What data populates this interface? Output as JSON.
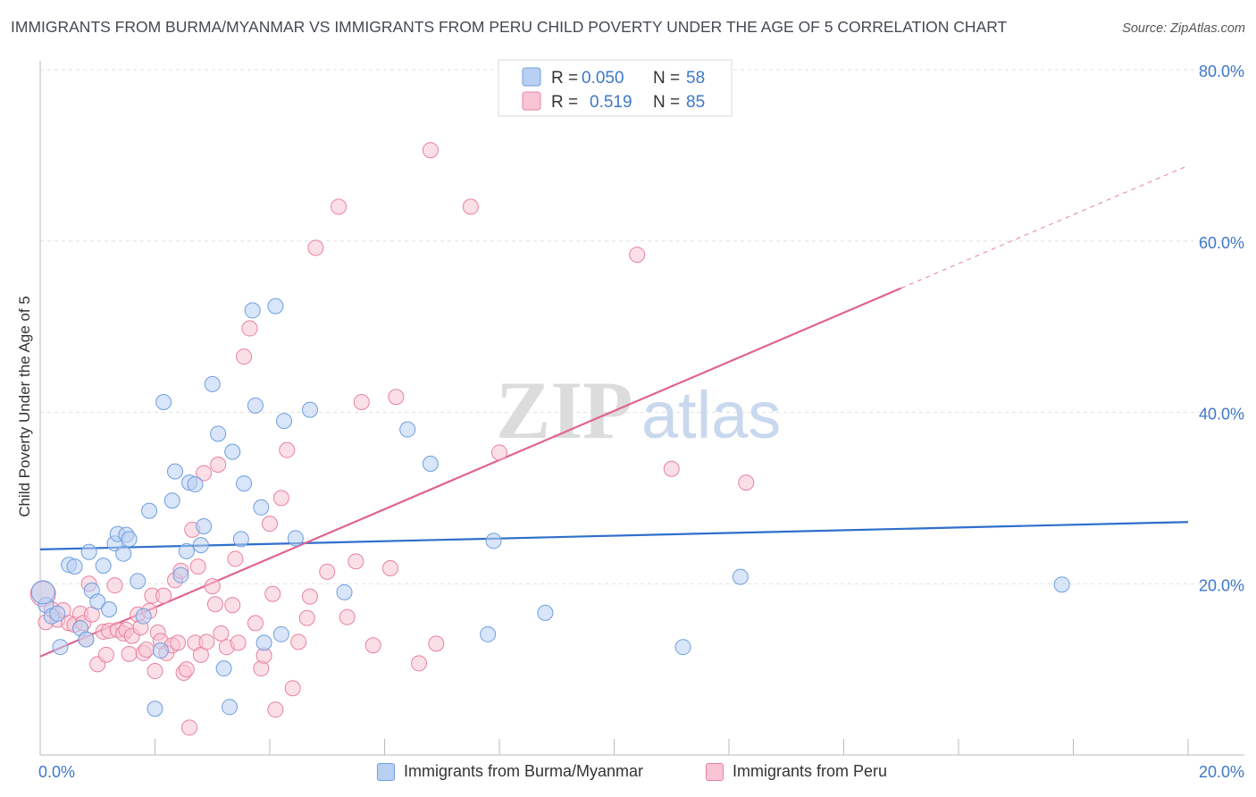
{
  "title": "IMMIGRANTS FROM BURMA/MYANMAR VS IMMIGRANTS FROM PERU CHILD POVERTY UNDER THE AGE OF 5 CORRELATION CHART",
  "source": "Source: ZipAtlas.com",
  "watermark": {
    "zip": "ZIP",
    "atlas": "atlas"
  },
  "colors": {
    "blue_fill": "#b9d0f2",
    "blue_stroke": "#6d9fe0",
    "blue_line": "#2f6fcb",
    "pink_fill": "#f8c5d4",
    "pink_stroke": "#e8819f",
    "pink_line": "#e0648f",
    "tick_text": "#3d78c9",
    "grid": "#e2e2e2"
  },
  "legend_top": [
    {
      "r_label": "R =",
      "r_value": "0.050",
      "n_label": "N =",
      "n_value": "58"
    },
    {
      "r_label": "R =",
      "r_value": "0.519",
      "n_label": "N =",
      "n_value": "85"
    }
  ],
  "legend_bottom": [
    {
      "label": "Immigrants from Burma/Myanmar"
    },
    {
      "label": "Immigrants from Peru"
    }
  ],
  "chart_data": {
    "type": "scatter",
    "title": "IMMIGRANTS FROM BURMA/MYANMAR VS IMMIGRANTS FROM PERU CHILD POVERTY UNDER THE AGE OF 5 CORRELATION CHART",
    "xlabel": "",
    "ylabel": "Child Poverty Under the Age of 5",
    "xlim": [
      0,
      20
    ],
    "ylim": [
      0,
      80
    ],
    "x_tick_labels": [
      {
        "value": 0,
        "label": "0.0%"
      },
      {
        "value": 20,
        "label": "20.0%"
      }
    ],
    "y_tick_labels": [
      {
        "value": 20,
        "label": "20.0%"
      },
      {
        "value": 40,
        "label": "40.0%"
      },
      {
        "value": 60,
        "label": "60.0%"
      },
      {
        "value": 80,
        "label": "80.0%"
      }
    ],
    "series": [
      {
        "name": "Immigrants from Burma/Myanmar",
        "r": 0.05,
        "n": 58,
        "trend": {
          "x0": 0,
          "y0": 24.0,
          "x1": 20,
          "y1": 27.2
        },
        "points": [
          [
            0.1,
            17.5
          ],
          [
            0.2,
            16.2
          ],
          [
            0.3,
            16.5
          ],
          [
            0.35,
            12.6
          ],
          [
            0.5,
            22.2
          ],
          [
            0.6,
            22.0
          ],
          [
            0.7,
            14.8
          ],
          [
            0.8,
            13.5
          ],
          [
            0.85,
            23.7
          ],
          [
            0.9,
            19.2
          ],
          [
            1.0,
            17.9
          ],
          [
            1.1,
            22.1
          ],
          [
            1.2,
            17.0
          ],
          [
            1.3,
            24.7
          ],
          [
            1.35,
            25.8
          ],
          [
            1.45,
            23.5
          ],
          [
            1.5,
            25.7
          ],
          [
            1.55,
            25.2
          ],
          [
            1.7,
            20.3
          ],
          [
            1.8,
            16.2
          ],
          [
            1.9,
            28.5
          ],
          [
            2.0,
            5.4
          ],
          [
            2.1,
            12.2
          ],
          [
            2.15,
            41.2
          ],
          [
            2.3,
            29.7
          ],
          [
            2.35,
            33.1
          ],
          [
            2.45,
            21.0
          ],
          [
            2.55,
            23.8
          ],
          [
            2.6,
            31.8
          ],
          [
            2.7,
            31.6
          ],
          [
            2.8,
            24.5
          ],
          [
            2.85,
            26.7
          ],
          [
            3.0,
            43.3
          ],
          [
            3.1,
            37.5
          ],
          [
            3.2,
            10.1
          ],
          [
            3.3,
            5.6
          ],
          [
            3.35,
            35.4
          ],
          [
            3.5,
            25.2
          ],
          [
            3.55,
            31.7
          ],
          [
            3.7,
            51.9
          ],
          [
            3.75,
            40.8
          ],
          [
            3.85,
            28.9
          ],
          [
            3.9,
            13.1
          ],
          [
            4.1,
            52.4
          ],
          [
            4.2,
            14.1
          ],
          [
            4.25,
            39.0
          ],
          [
            4.45,
            25.3
          ],
          [
            4.7,
            40.3
          ],
          [
            5.3,
            19.0
          ],
          [
            6.4,
            38.0
          ],
          [
            6.8,
            34.0
          ],
          [
            7.8,
            14.1
          ],
          [
            7.9,
            25.0
          ],
          [
            8.8,
            16.6
          ],
          [
            11.2,
            12.6
          ],
          [
            12.2,
            20.8
          ],
          [
            17.8,
            19.9
          ],
          [
            0.05,
            19.0
          ]
        ]
      },
      {
        "name": "Immigrants from Peru",
        "r": 0.519,
        "n": 85,
        "trend": {
          "x0": 0,
          "y0": 11.5,
          "x1": 15.0,
          "y1": 54.5,
          "dash_x1": 20,
          "dash_y1": 68.8
        },
        "points": [
          [
            0.05,
            18.8
          ],
          [
            0.1,
            15.5
          ],
          [
            0.2,
            17.0
          ],
          [
            0.3,
            15.8
          ],
          [
            0.4,
            16.9
          ],
          [
            0.5,
            15.4
          ],
          [
            0.6,
            15.2
          ],
          [
            0.7,
            16.5
          ],
          [
            0.75,
            15.4
          ],
          [
            0.8,
            13.5
          ],
          [
            0.85,
            20.0
          ],
          [
            0.9,
            16.4
          ],
          [
            1.0,
            10.6
          ],
          [
            1.1,
            14.4
          ],
          [
            1.15,
            11.7
          ],
          [
            1.2,
            14.5
          ],
          [
            1.3,
            19.8
          ],
          [
            1.35,
            14.6
          ],
          [
            1.45,
            14.2
          ],
          [
            1.5,
            14.6
          ],
          [
            1.55,
            11.8
          ],
          [
            1.6,
            13.9
          ],
          [
            1.7,
            16.4
          ],
          [
            1.75,
            14.9
          ],
          [
            1.8,
            11.9
          ],
          [
            1.85,
            12.3
          ],
          [
            1.9,
            16.8
          ],
          [
            1.95,
            18.6
          ],
          [
            2.0,
            9.8
          ],
          [
            2.05,
            14.3
          ],
          [
            2.1,
            13.3
          ],
          [
            2.15,
            18.6
          ],
          [
            2.2,
            11.9
          ],
          [
            2.3,
            12.8
          ],
          [
            2.35,
            20.4
          ],
          [
            2.4,
            13.1
          ],
          [
            2.45,
            21.5
          ],
          [
            2.5,
            9.6
          ],
          [
            2.55,
            10.0
          ],
          [
            2.6,
            3.2
          ],
          [
            2.65,
            26.3
          ],
          [
            2.7,
            13.1
          ],
          [
            2.75,
            22.0
          ],
          [
            2.8,
            11.7
          ],
          [
            2.85,
            32.9
          ],
          [
            2.9,
            13.2
          ],
          [
            3.0,
            19.7
          ],
          [
            3.05,
            17.6
          ],
          [
            3.1,
            33.9
          ],
          [
            3.15,
            14.2
          ],
          [
            3.25,
            12.6
          ],
          [
            3.35,
            17.5
          ],
          [
            3.4,
            22.9
          ],
          [
            3.45,
            13.1
          ],
          [
            3.55,
            46.5
          ],
          [
            3.65,
            49.8
          ],
          [
            3.75,
            15.4
          ],
          [
            3.85,
            10.1
          ],
          [
            3.9,
            11.6
          ],
          [
            4.0,
            27.0
          ],
          [
            4.05,
            18.8
          ],
          [
            4.1,
            5.3
          ],
          [
            4.2,
            30.0
          ],
          [
            4.3,
            35.6
          ],
          [
            4.4,
            7.8
          ],
          [
            4.5,
            13.2
          ],
          [
            4.65,
            16.0
          ],
          [
            4.7,
            18.5
          ],
          [
            4.8,
            59.2
          ],
          [
            5.0,
            21.4
          ],
          [
            5.2,
            64.0
          ],
          [
            5.35,
            16.1
          ],
          [
            5.5,
            22.6
          ],
          [
            5.6,
            41.2
          ],
          [
            5.8,
            12.8
          ],
          [
            6.1,
            21.8
          ],
          [
            6.2,
            41.8
          ],
          [
            6.6,
            10.7
          ],
          [
            6.8,
            70.6
          ],
          [
            6.9,
            13.0
          ],
          [
            7.5,
            64.0
          ],
          [
            8.0,
            35.3
          ],
          [
            10.4,
            58.4
          ],
          [
            11.0,
            33.4
          ],
          [
            12.3,
            31.8
          ]
        ]
      }
    ]
  }
}
